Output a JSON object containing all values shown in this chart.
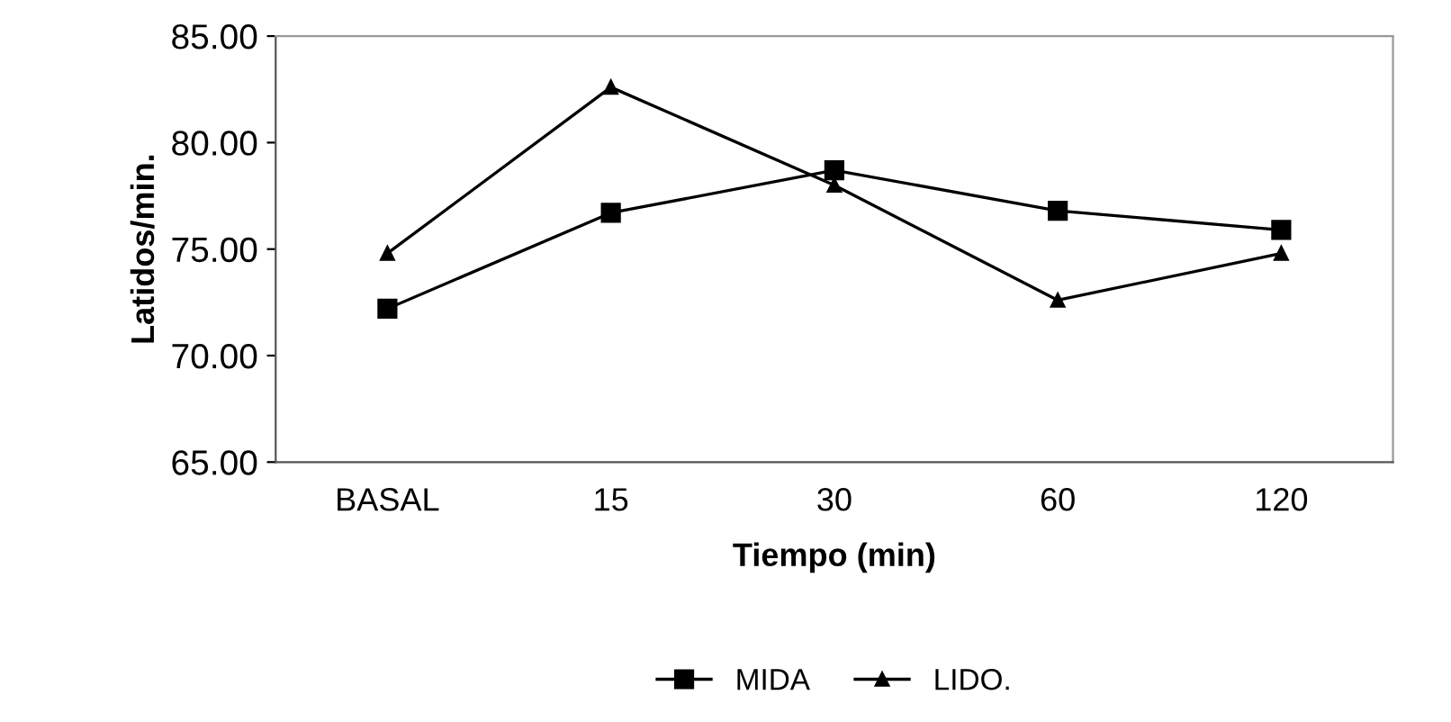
{
  "chart_data": {
    "type": "line",
    "xlabel": "Tiempo (min)",
    "ylabel": "Latidos/min.",
    "categories": [
      "BASAL",
      "15",
      "30",
      "60",
      "120"
    ],
    "series": [
      {
        "name": "MIDA",
        "color": "#000000",
        "marker": "square",
        "values": [
          72.2,
          76.7,
          78.7,
          76.8,
          75.9
        ]
      },
      {
        "name": "LIDO.",
        "color": "#000000",
        "marker": "triangle",
        "values": [
          74.8,
          82.6,
          78.0,
          72.6,
          74.8
        ]
      }
    ],
    "ylim": [
      65,
      85
    ],
    "yticks": [
      {
        "value": 65,
        "label": "65.00"
      },
      {
        "value": 70,
        "label": "70.00"
      },
      {
        "value": 75,
        "label": "75.00"
      },
      {
        "value": 80,
        "label": "80.00"
      },
      {
        "value": 85,
        "label": "85.00"
      }
    ],
    "grid": false,
    "legend": "bottom",
    "line_style": "solid"
  }
}
